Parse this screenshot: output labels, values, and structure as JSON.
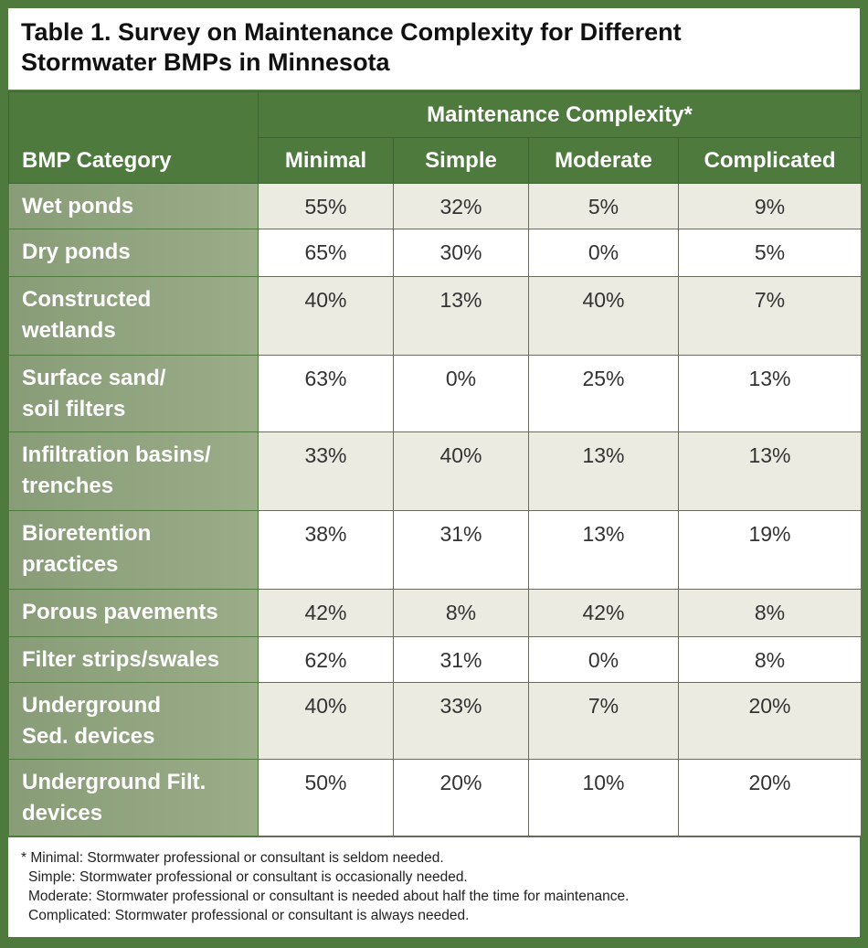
{
  "title": [
    "Table 1. Survey on Maintenance Complexity for Different",
    "Stormwater BMPs in Minnesota"
  ],
  "colors": {
    "header_green": "#4e7a3e",
    "category_green": "#889d77",
    "row_shade": "#ecebe2"
  },
  "header": {
    "group": "Maintenance Complexity*",
    "category": "BMP Category",
    "columns": [
      "Minimal",
      "Simple",
      "Moderate",
      "Complicated"
    ]
  },
  "rows": [
    {
      "category": [
        "Wet ponds"
      ],
      "values": [
        "55%",
        "32%",
        "5%",
        "9%"
      ]
    },
    {
      "category": [
        "Dry ponds"
      ],
      "values": [
        "65%",
        "30%",
        "0%",
        "5%"
      ]
    },
    {
      "category": [
        "Constructed",
        "wetlands"
      ],
      "values": [
        "40%",
        "13%",
        "40%",
        "7%"
      ]
    },
    {
      "category": [
        "Surface sand/",
        "soil filters"
      ],
      "values": [
        "63%",
        "0%",
        "25%",
        "13%"
      ]
    },
    {
      "category": [
        "Infiltration basins/",
        "trenches"
      ],
      "values": [
        "33%",
        "40%",
        "13%",
        "13%"
      ]
    },
    {
      "category": [
        "Bioretention",
        "practices"
      ],
      "values": [
        "38%",
        "31%",
        "13%",
        "19%"
      ]
    },
    {
      "category": [
        "Porous pavements"
      ],
      "values": [
        "42%",
        "8%",
        "42%",
        "8%"
      ]
    },
    {
      "category": [
        "Filter strips/swales"
      ],
      "values": [
        "62%",
        "31%",
        "0%",
        "8%"
      ]
    },
    {
      "category": [
        "Underground",
        "Sed. devices"
      ],
      "values": [
        "40%",
        "33%",
        "7%",
        "20%"
      ]
    },
    {
      "category": [
        "Underground Filt.",
        "devices"
      ],
      "values": [
        "50%",
        "20%",
        "10%",
        "20%"
      ]
    }
  ],
  "footnotes": [
    "* Minimal: Stormwater professional or consultant is seldom needed.",
    "Simple: Stormwater professional or consultant is occasionally needed.",
    "Moderate: Stormwater professional or consultant is needed about half the time for maintenance.",
    "Complicated: Stormwater professional or consultant is always needed."
  ]
}
